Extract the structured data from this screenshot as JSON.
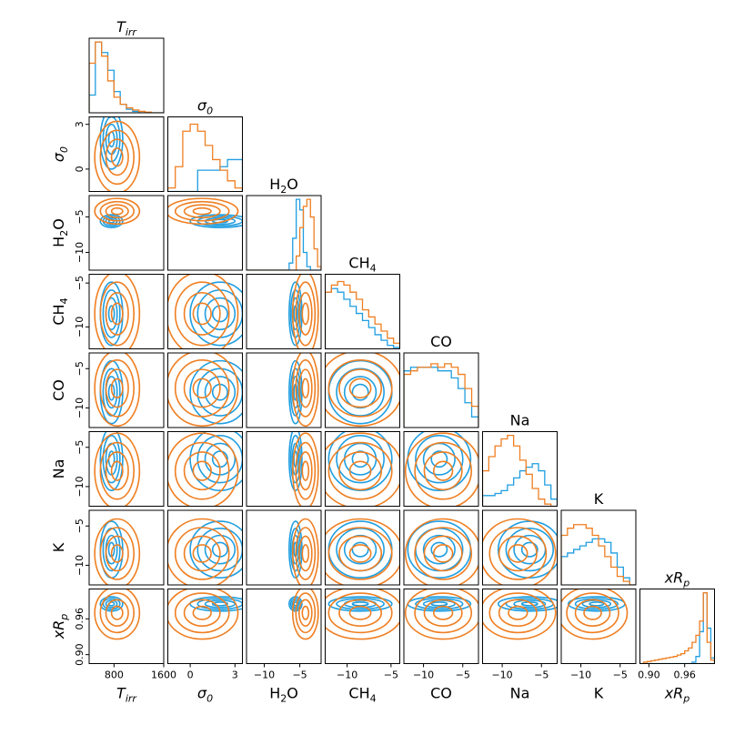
{
  "chart_data": {
    "type": "corner",
    "parameters": [
      {
        "key": "tirr",
        "label_main": "T",
        "label_sub": "irr",
        "italic": true,
        "range": [
          400,
          1600
        ],
        "ticks": [
          800,
          1600
        ],
        "tick_labels": [
          "800",
          "1600"
        ]
      },
      {
        "key": "sigma0",
        "label_main": "σ",
        "label_sub": "0",
        "italic": true,
        "range": [
          -1.5,
          3.5
        ],
        "ticks": [
          0,
          3
        ],
        "tick_labels": [
          "0",
          "3"
        ]
      },
      {
        "key": "h2o",
        "label_main": "H",
        "label_sub": "2",
        "label_tail": "O",
        "italic": false,
        "range": [
          -12.5,
          -2.0
        ],
        "ticks": [
          -10,
          -5
        ],
        "tick_labels": [
          "−10",
          "−5"
        ]
      },
      {
        "key": "ch4",
        "label_main": "CH",
        "label_sub": "4",
        "italic": false,
        "range": [
          -12.5,
          -4.0
        ],
        "ticks": [
          -10,
          -5
        ],
        "tick_labels": [
          "−10",
          "−5"
        ]
      },
      {
        "key": "co",
        "label_main": "CO",
        "label_sub": "",
        "italic": false,
        "range": [
          -12.5,
          -3.0
        ],
        "ticks": [
          -10,
          -5
        ],
        "tick_labels": [
          "−10",
          "−5"
        ]
      },
      {
        "key": "na",
        "label_main": "Na",
        "label_sub": "",
        "italic": false,
        "range": [
          -12.5,
          -3.0
        ],
        "ticks": [
          -10,
          -5
        ],
        "tick_labels": [
          "−10",
          "−5"
        ]
      },
      {
        "key": "k",
        "label_main": "K",
        "label_sub": "",
        "italic": false,
        "range": [
          -12.5,
          -3.0
        ],
        "ticks": [
          -10,
          -5
        ],
        "tick_labels": [
          "−10",
          "−5"
        ]
      },
      {
        "key": "xrp",
        "label_main": "xR",
        "label_sub": "p",
        "italic": true,
        "range": [
          0.885,
          1.01
        ],
        "ticks": [
          0.9,
          0.96
        ],
        "tick_labels": [
          "0.90",
          "0.96"
        ]
      }
    ],
    "series": [
      {
        "color": "#1f9ee0",
        "marginals": {
          "tirr": [
            0.25,
            1,
            0.85,
            0.6,
            0.3,
            0.12,
            0.05,
            0.02,
            0,
            0,
            0,
            0
          ],
          "sigma0": [
            0,
            0,
            0,
            0,
            0.3,
            0.3,
            0.3,
            0.35,
            0.45,
            0.45
          ],
          "h2o": [
            0,
            0,
            0,
            0,
            0,
            0,
            0,
            0,
            0,
            0,
            0,
            0,
            0.1,
            0.45,
            1,
            0.85,
            0.25,
            0.05,
            0,
            0,
            0
          ],
          "ch4": [
            0.8,
            0.85,
            0.8,
            0.7,
            0.6,
            0.5,
            0.4,
            0.3,
            0.2,
            0.12,
            0.05,
            0.02
          ],
          "co": [
            0.8,
            0.85,
            0.85,
            0.85,
            0.85,
            0.8,
            0.8,
            0.7,
            0.55,
            0.35,
            0.15
          ],
          "na": [
            0.15,
            0.15,
            0.18,
            0.22,
            0.3,
            0.4,
            0.5,
            0.55,
            0.6,
            0.5,
            0.3,
            0.1
          ],
          "k": [
            0.4,
            0.45,
            0.5,
            0.55,
            0.6,
            0.65,
            0.65,
            0.6,
            0.45,
            0.25,
            0.1,
            0
          ],
          "xrp": [
            0,
            0,
            0,
            0,
            0,
            0,
            0,
            0,
            0,
            0,
            0,
            0,
            0,
            0,
            0.02,
            0.1,
            0.45,
            1,
            0.5,
            0.08
          ]
        },
        "gaussians": {
          "tirr": [
            760,
            90
          ],
          "sigma0": [
            2.0,
            1.0
          ],
          "h2o": [
            -5.6,
            0.45
          ],
          "ch4": [
            -8.5,
            1.8
          ],
          "co": [
            -8.0,
            2.0
          ],
          "na": [
            -6.5,
            2.0
          ],
          "k": [
            -8.0,
            1.8
          ],
          "xrp": [
            0.985,
            0.006
          ]
        }
      },
      {
        "color": "#ef7f22",
        "marginals": {
          "tirr": [
            0.7,
            1,
            0.8,
            0.45,
            0.22,
            0.12,
            0.07,
            0.04,
            0.02,
            0.01,
            0,
            0
          ],
          "sigma0": [
            0.05,
            0.35,
            0.85,
            0.95,
            0.85,
            0.65,
            0.45,
            0.3,
            0.15,
            0.05
          ],
          "h2o": [
            0,
            0,
            0,
            0,
            0,
            0,
            0,
            0,
            0,
            0,
            0,
            0,
            0,
            0,
            0.2,
            0.6,
            0.9,
            1,
            0.75,
            0.3,
            0.05
          ],
          "ch4": [
            0.8,
            0.9,
            0.95,
            0.9,
            0.8,
            0.7,
            0.55,
            0.45,
            0.35,
            0.25,
            0.15,
            0.08
          ],
          "co": [
            0.75,
            0.8,
            0.85,
            0.85,
            0.9,
            0.85,
            0.9,
            0.85,
            0.75,
            0.55,
            0.3
          ],
          "na": [
            0.5,
            0.7,
            0.85,
            0.95,
            1,
            0.85,
            0.65,
            0.45,
            0.25,
            0.1,
            0.03,
            0
          ],
          "k": [
            0.7,
            0.8,
            0.85,
            0.85,
            0.8,
            0.7,
            0.55,
            0.4,
            0.25,
            0.12,
            0.05,
            0
          ],
          "xrp": [
            0,
            0.02,
            0.03,
            0.04,
            0.05,
            0.06,
            0.07,
            0.08,
            0.09,
            0.1,
            0.12,
            0.14,
            0.18,
            0.22,
            0.3,
            0.4,
            0.6,
            1,
            0.3,
            0.05
          ]
        },
        "gaussians": {
          "tirr": [
            850,
            180
          ],
          "sigma0": [
            0.8,
            1.2
          ],
          "h2o": [
            -4.2,
            0.9
          ],
          "ch4": [
            -8.5,
            2.4
          ],
          "co": [
            -7.5,
            2.4
          ],
          "na": [
            -8.0,
            2.4
          ],
          "k": [
            -8.5,
            2.2
          ],
          "xrp": [
            0.97,
            0.022
          ]
        }
      }
    ]
  }
}
